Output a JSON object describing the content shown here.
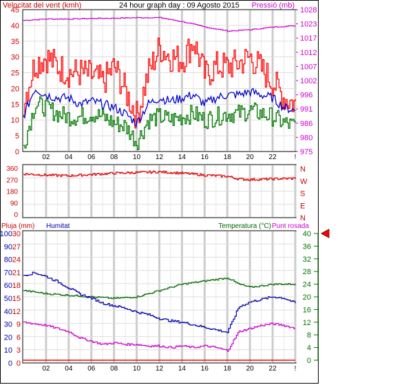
{
  "chart_data": [
    {
      "type": "line",
      "panel": "wind-pressure",
      "title": "24 hour graph day : 09 Agosto 2015",
      "left_label": "Velocitat del vent (kmh)",
      "right_label": "Pressió (mb)",
      "x_ticks": [
        "02",
        "04",
        "06",
        "08",
        "10",
        "12",
        "14",
        "16",
        "18",
        "20",
        "22",
        "!"
      ],
      "y_left_ticks": [
        "45",
        "40",
        "35",
        "30",
        "25",
        "20",
        "15",
        "10",
        "5",
        "0"
      ],
      "y_left_range": [
        0,
        45
      ],
      "y_right_ticks": [
        "1028",
        "1023",
        "1017",
        "1012",
        "1007",
        "1002",
        "996",
        "991",
        "986",
        "980",
        "975"
      ],
      "y_right_range": [
        975,
        1028
      ],
      "grid": true,
      "colors": {
        "gust": "#ff0000",
        "average": "#0000cc",
        "low": "#007700",
        "pressure": "#cc00cc"
      },
      "series": [
        {
          "key": "gust",
          "x": [
            0,
            1,
            2,
            3,
            4,
            5,
            6,
            7,
            8,
            9,
            10,
            11,
            12,
            13,
            14,
            15,
            16,
            17,
            18,
            19,
            20,
            21,
            22,
            23,
            24
          ],
          "values": [
            16,
            28,
            30,
            27,
            25,
            25,
            24,
            22,
            27,
            19,
            11,
            25,
            33,
            30,
            29,
            35,
            24,
            27,
            27,
            28,
            30,
            26,
            22,
            17,
            15
          ]
        },
        {
          "key": "average",
          "x": [
            0,
            1,
            2,
            3,
            4,
            5,
            6,
            7,
            8,
            9,
            10,
            11,
            12,
            13,
            14,
            15,
            16,
            17,
            18,
            19,
            20,
            21,
            22,
            23,
            24
          ],
          "values": [
            11,
            20,
            18,
            17,
            17,
            15,
            16,
            15,
            14,
            12,
            9,
            15,
            17,
            16,
            17,
            18,
            15,
            17,
            18,
            18,
            19,
            18,
            17,
            14,
            13
          ]
        },
        {
          "key": "low",
          "x": [
            0,
            1,
            2,
            3,
            4,
            5,
            6,
            7,
            8,
            9,
            10,
            11,
            12,
            13,
            14,
            15,
            16,
            17,
            18,
            19,
            20,
            21,
            22,
            23,
            24
          ],
          "values": [
            2,
            15,
            14,
            12,
            11,
            11,
            12,
            11,
            9,
            8,
            3,
            10,
            11,
            10,
            11,
            12,
            10,
            11,
            12,
            12,
            13,
            12,
            11,
            9,
            8
          ]
        },
        {
          "key": "pressure",
          "x": [
            0,
            2,
            4,
            6,
            8,
            10,
            12,
            14,
            16,
            18,
            20,
            22,
            24
          ],
          "values": [
            1024,
            1024.5,
            1024.5,
            1024.7,
            1024.8,
            1025,
            1025,
            1023.5,
            1021.5,
            1020,
            1020.5,
            1021.5,
            1022
          ]
        }
      ]
    },
    {
      "type": "line",
      "panel": "wind-direction",
      "y_ticks": [
        "360",
        "270",
        "180",
        "90",
        "0"
      ],
      "y_range": [
        0,
        360
      ],
      "right_labels": [
        "N",
        "W",
        "S",
        "E",
        "N"
      ],
      "color": "#dd0000",
      "x": [
        0,
        2,
        4,
        6,
        8,
        10,
        12,
        14,
        16,
        18,
        19,
        20,
        22,
        24
      ],
      "values": [
        315,
        305,
        300,
        310,
        320,
        325,
        330,
        320,
        305,
        295,
        275,
        270,
        275,
        280
      ]
    },
    {
      "type": "line",
      "panel": "rain-humidity-temperature",
      "left_label_1": "Pluja (mm)",
      "left_label_2": "Humitat",
      "right_label_1": "Temperatura (°C)",
      "right_label_2": "Punt rosada",
      "y_rain_ticks": [
        "30",
        "27",
        "24",
        "21",
        "18",
        "15",
        "12",
        "9",
        "6",
        "3",
        "0"
      ],
      "y_humidity_ticks": [
        "100",
        "90",
        "80",
        "70",
        "60",
        "50",
        "40",
        "30",
        "20",
        "10",
        "0"
      ],
      "y_humidity_range": [
        0,
        100
      ],
      "y_temp_ticks": [
        "40",
        "36",
        "32",
        "28",
        "24",
        "20",
        "16",
        "12",
        "8",
        "4",
        "0"
      ],
      "y_temp_range": [
        0,
        40
      ],
      "marker_value": 40,
      "colors": {
        "rain": "#ff0000",
        "humidity": "#0000aa",
        "temperature": "#006600",
        "dewpoint": "#cc00cc"
      },
      "series": [
        {
          "key": "temperature",
          "x": [
            0,
            2,
            4,
            6,
            8,
            10,
            12,
            14,
            16,
            18,
            19,
            20,
            22,
            24
          ],
          "values": [
            22,
            21,
            20.5,
            20,
            19.5,
            20,
            22,
            24,
            25,
            26,
            24,
            23,
            24,
            24
          ]
        },
        {
          "key": "humidity",
          "x": [
            0,
            1,
            2,
            3,
            4,
            5,
            6,
            7,
            8,
            9,
            10,
            11,
            12,
            13,
            14,
            15,
            16,
            17,
            18,
            19,
            20,
            21,
            22,
            23,
            24
          ],
          "values": [
            67,
            69,
            66,
            62,
            57,
            52,
            49,
            45,
            43,
            41,
            38,
            36,
            33,
            31,
            30,
            28,
            26,
            24,
            22,
            42,
            46,
            48,
            50,
            49,
            45
          ]
        },
        {
          "key": "dewpoint",
          "x": [
            0,
            1,
            2,
            3,
            4,
            5,
            6,
            7,
            8,
            9,
            10,
            11,
            12,
            13,
            14,
            15,
            16,
            17,
            18,
            19,
            20,
            21,
            22,
            23,
            24
          ],
          "values": [
            12,
            11.5,
            11,
            10,
            9,
            7,
            6,
            5,
            5.5,
            5,
            5,
            4.5,
            4.5,
            4,
            4.5,
            4,
            4.5,
            4,
            3,
            9,
            10,
            11,
            11.5,
            11,
            10
          ]
        },
        {
          "key": "rain",
          "x": [
            0,
            24
          ],
          "values": [
            0,
            0
          ]
        }
      ]
    }
  ]
}
